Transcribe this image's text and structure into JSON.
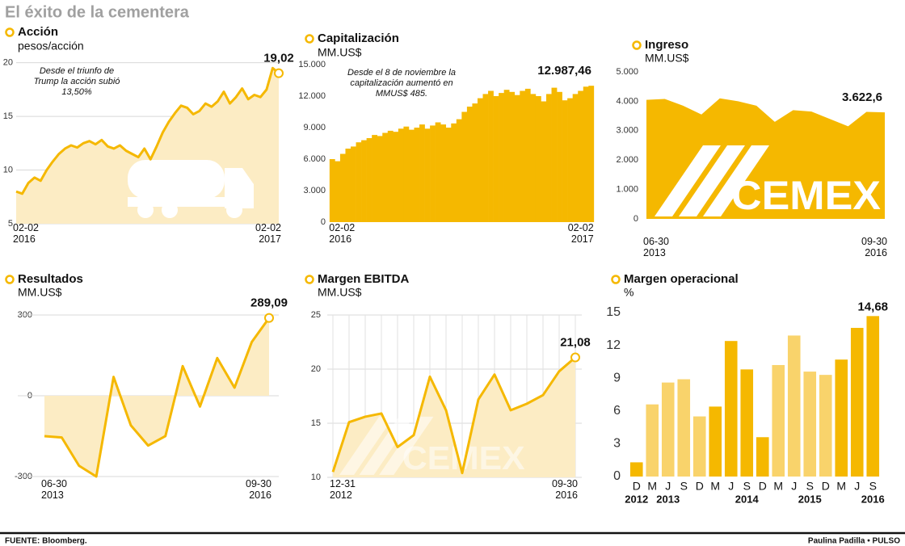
{
  "title": "El éxito de la cementera",
  "source": "FUENTE: Bloomberg.",
  "credit": "Paulina Padilla • PULSO",
  "chart_data": [
    {
      "type": "line",
      "title": "Acción",
      "subtitle": "pesos/acción",
      "annotation": [
        "Desde el triunfo de",
        "Trump la acción subió",
        "13,50%"
      ],
      "categories": [
        "02-02 2016",
        null,
        null,
        null,
        null,
        null,
        null,
        null,
        null,
        null,
        null,
        null,
        null,
        null,
        null,
        null,
        null,
        null,
        null,
        null,
        null,
        null,
        null,
        null,
        null,
        null,
        null,
        null,
        null,
        null,
        null,
        null,
        null,
        null,
        null,
        null,
        null,
        null,
        null,
        null,
        null,
        null,
        null,
        "02-02 2017"
      ],
      "values": [
        8,
        7.8,
        8.8,
        9.3,
        9,
        10,
        10.8,
        11.5,
        12,
        12.3,
        12.1,
        12.5,
        12.7,
        12.4,
        12.8,
        12.2,
        12,
        12.3,
        11.8,
        11.5,
        11.2,
        12,
        11,
        12.2,
        13.5,
        14.5,
        15.3,
        16,
        15.8,
        15.2,
        15.5,
        16.2,
        15.9,
        16.4,
        17.3,
        16.2,
        16.8,
        17.6,
        16.6,
        17,
        16.8,
        17.5,
        19.5,
        19.02
      ],
      "value_labels": [
        null,
        null,
        null,
        null,
        null,
        null,
        null,
        null,
        null,
        null,
        null,
        null,
        null,
        null,
        null,
        null,
        null,
        null,
        null,
        null,
        null,
        null,
        null,
        null,
        null,
        null,
        null,
        null,
        null,
        null,
        null,
        null,
        null,
        null,
        null,
        null,
        null,
        null,
        null,
        null,
        null,
        null,
        null,
        "19,02"
      ],
      "color": "#f5b800",
      "fill": "#fcecc4",
      "ylim": [
        5,
        20.5
      ],
      "yticks": [
        5,
        10,
        15,
        20
      ],
      "grid": true
    },
    {
      "type": "bar",
      "title": "Capitalización",
      "subtitle": "MM.US$",
      "annotation": [
        "Desde el 8 de noviembre la",
        "capitalización aumentó en",
        "MMUS$ 485."
      ],
      "categories": [
        "02-02 2016",
        null,
        null,
        null,
        null,
        null,
        null,
        null,
        null,
        null,
        null,
        null,
        null,
        null,
        null,
        null,
        null,
        null,
        null,
        null,
        null,
        null,
        null,
        null,
        null,
        null,
        null,
        null,
        null,
        null,
        null,
        null,
        null,
        null,
        null,
        null,
        null,
        null,
        null,
        null,
        null,
        null,
        null,
        null,
        null,
        null,
        null,
        null,
        null,
        "02-02 2017"
      ],
      "values": [
        6000,
        5800,
        6500,
        7000,
        7200,
        7600,
        7800,
        8000,
        8300,
        8200,
        8500,
        8700,
        8600,
        8900,
        9100,
        8800,
        9000,
        9300,
        8900,
        9200,
        9500,
        9300,
        9000,
        9400,
        9800,
        10500,
        11000,
        11300,
        11800,
        12200,
        12500,
        12000,
        12300,
        12600,
        12400,
        12100,
        12500,
        12700,
        12200,
        12000,
        11500,
        12200,
        12800,
        12400,
        11600,
        11800,
        12200,
        12500,
        12900,
        12987.46
      ],
      "value_labels": [
        null,
        null,
        null,
        null,
        null,
        null,
        null,
        null,
        null,
        null,
        null,
        null,
        null,
        null,
        null,
        null,
        null,
        null,
        null,
        null,
        null,
        null,
        null,
        null,
        null,
        null,
        null,
        null,
        null,
        null,
        null,
        null,
        null,
        null,
        null,
        null,
        null,
        null,
        null,
        null,
        null,
        null,
        null,
        null,
        null,
        null,
        null,
        null,
        null,
        "12.987,46"
      ],
      "color": "#f5b800",
      "ylim": [
        0,
        15000
      ],
      "yticks": [
        0,
        {
          "value": 3000,
          "label": "3.000"
        },
        {
          "value": 6000,
          "label": "6.000"
        },
        {
          "value": 9000,
          "label": "9.000"
        },
        {
          "value": 12000,
          "label": "12.000"
        },
        {
          "value": 15000,
          "label": "15.000"
        }
      ],
      "grid": false
    },
    {
      "type": "area",
      "title": "Ingreso",
      "subtitle": "MM.US$",
      "logo": "CEMEX",
      "categories": [
        "06-30 2013",
        null,
        null,
        null,
        null,
        null,
        null,
        null,
        null,
        null,
        null,
        null,
        null,
        "09-30 2016"
      ],
      "values": [
        4050,
        4080,
        3850,
        3550,
        4100,
        4000,
        3850,
        3300,
        3700,
        3650,
        3400,
        3150,
        3640,
        3622.6
      ],
      "value_labels": [
        null,
        null,
        null,
        null,
        null,
        null,
        null,
        null,
        null,
        null,
        null,
        null,
        null,
        "3.622,6"
      ],
      "color": "#f5b800",
      "ylim": [
        0,
        5000
      ],
      "yticks": [
        0,
        {
          "value": 1000,
          "label": "1.000"
        },
        {
          "value": 2000,
          "label": "2.000"
        },
        {
          "value": 3000,
          "label": "3.000"
        },
        {
          "value": 4000,
          "label": "4.000"
        },
        {
          "value": 5000,
          "label": "5.000"
        }
      ],
      "grid": false
    },
    {
      "type": "line",
      "title": "Resultados",
      "subtitle": "MM.US$",
      "categories": [
        "06-30 2013",
        null,
        null,
        null,
        null,
        null,
        null,
        null,
        null,
        null,
        null,
        null,
        null,
        "09-30 2016"
      ],
      "values": [
        -150,
        -155,
        -260,
        -300,
        70,
        -110,
        -185,
        -150,
        110,
        -40,
        140,
        30,
        200,
        289.09
      ],
      "value_labels": [
        null,
        null,
        null,
        null,
        null,
        null,
        null,
        null,
        null,
        null,
        null,
        null,
        null,
        "289,09"
      ],
      "color": "#f5b800",
      "fill": "#fcecc4",
      "ylim": [
        -310,
        330
      ],
      "yticks": [
        -300,
        0,
        300
      ],
      "grid": true
    },
    {
      "type": "line",
      "title": "Margen EBITDA",
      "subtitle": "MM.US$",
      "logo": "CEMEX",
      "categories": [
        "12-31 2012",
        null,
        null,
        null,
        null,
        null,
        null,
        null,
        null,
        null,
        null,
        null,
        null,
        null,
        null,
        "09-30 2016"
      ],
      "values": [
        10.5,
        15.1,
        15.6,
        15.9,
        12.8,
        13.9,
        19.3,
        16.2,
        10.4,
        17.2,
        19.5,
        16.2,
        16.8,
        17.6,
        19.8,
        21.08
      ],
      "value_labels": [
        null,
        null,
        null,
        null,
        null,
        null,
        null,
        null,
        null,
        null,
        null,
        null,
        null,
        null,
        null,
        "21,08"
      ],
      "color": "#f5b800",
      "fill": "#fcecc4",
      "ylim": [
        10,
        25
      ],
      "yticks": [
        10,
        15,
        20,
        25
      ],
      "grid": true,
      "xgrid": true
    },
    {
      "type": "bar",
      "title": "Margen operacional",
      "subtitle": "%",
      "categories": [
        "D",
        "M",
        "J",
        "S",
        "D",
        "M",
        "J",
        "S",
        "D",
        "M",
        "J",
        "S",
        "D",
        "M",
        "J",
        "S"
      ],
      "year_labels": [
        "2012",
        null,
        "2013",
        null,
        null,
        null,
        null,
        "2014",
        null,
        null,
        null,
        "2015",
        null,
        null,
        null,
        "2016"
      ],
      "values": [
        1.3,
        6.6,
        8.6,
        8.9,
        5.5,
        6.4,
        12.4,
        9.8,
        3.6,
        10.2,
        12.9,
        9.6,
        9.3,
        10.7,
        13.6,
        14.68
      ],
      "value_labels": [
        null,
        null,
        null,
        null,
        null,
        null,
        null,
        null,
        null,
        null,
        null,
        null,
        null,
        null,
        null,
        "14,68"
      ],
      "colors": [
        "#f5b800",
        "#f9d36b",
        "#f9d36b",
        "#f9d36b",
        "#f9d36b",
        "#f5b800",
        "#f5b800",
        "#f5b800",
        "#f5b800",
        "#f9d36b",
        "#f9d36b",
        "#f9d36b",
        "#f9d36b",
        "#f5b800",
        "#f5b800",
        "#f5b800"
      ],
      "ylim": [
        0,
        15
      ],
      "yticks": [
        0,
        3,
        6,
        9,
        12,
        15
      ],
      "grid": false
    }
  ]
}
